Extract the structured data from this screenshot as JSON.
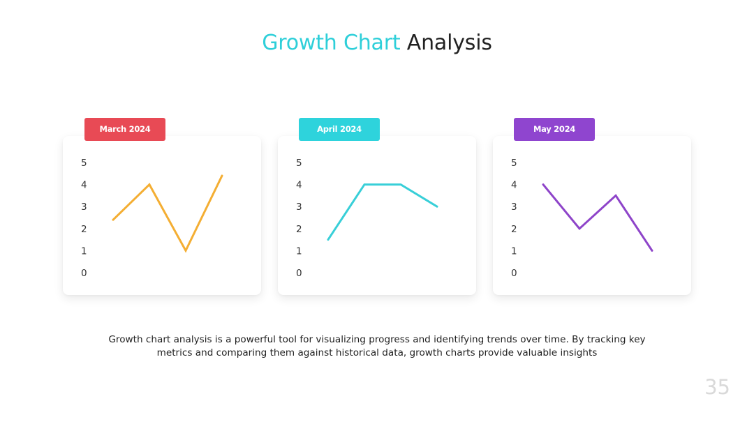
{
  "slide": {
    "title_accent": "Growth Chart",
    "title_rest": "Analysis",
    "caption": "Growth chart analysis is a powerful tool for visualizing progress and identifying trends over time. By tracking key metrics and comparing them against historical data, growth charts provide valuable insights",
    "page_number": "35"
  },
  "chart_data": [
    {
      "type": "line",
      "label": "March 2024",
      "badge_color": "#e84a55",
      "line_color": "#f4ae33",
      "y_ticks": [
        5,
        4,
        3,
        2,
        1,
        0
      ],
      "ylim": [
        0,
        5
      ],
      "values": [
        2.4,
        4.0,
        1.0,
        4.4
      ]
    },
    {
      "type": "line",
      "label": "April 2024",
      "badge_color": "#2ed3dc",
      "line_color": "#38cfd8",
      "y_ticks": [
        5,
        4,
        3,
        2,
        1,
        0
      ],
      "ylim": [
        0,
        5
      ],
      "values": [
        1.5,
        4.0,
        4.0,
        3.0
      ]
    },
    {
      "type": "line",
      "label": "May 2024",
      "badge_color": "#8f45cf",
      "line_color": "#8e44c9",
      "y_ticks": [
        5,
        4,
        3,
        2,
        1,
        0
      ],
      "ylim": [
        0,
        5
      ],
      "values": [
        4.0,
        2.0,
        3.5,
        1.0
      ]
    }
  ]
}
